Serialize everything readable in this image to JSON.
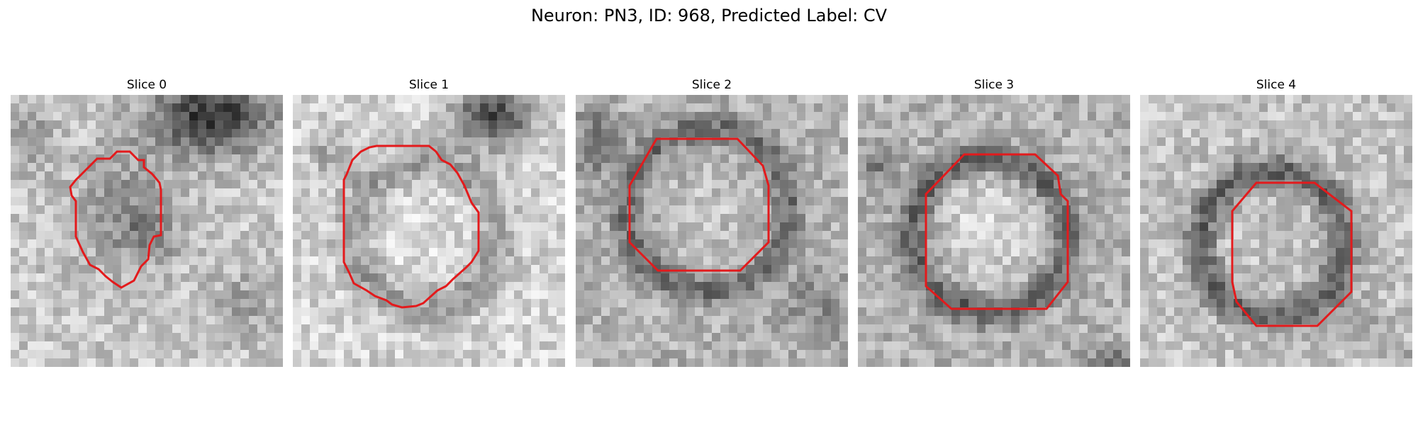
{
  "title": "Neuron: PN3, ID: 968, Predicted Label: CV",
  "panels": [
    {
      "label": "Slice 0",
      "mask_color": "#e31a1c"
    },
    {
      "label": "Slice 1",
      "mask_color": "#e31a1c"
    },
    {
      "label": "Slice 2",
      "mask_color": "#e31a1c"
    },
    {
      "label": "Slice 3",
      "mask_color": "#e31a1c"
    },
    {
      "label": "Slice 4",
      "mask_color": "#e31a1c"
    }
  ]
}
